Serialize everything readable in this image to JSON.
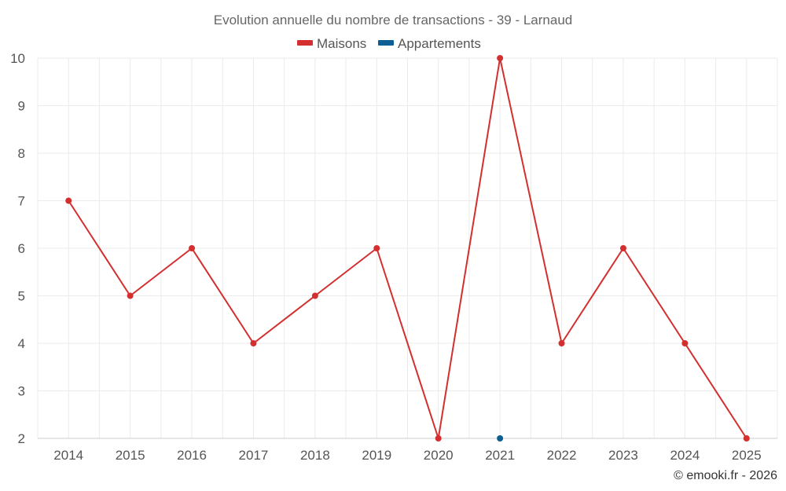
{
  "chart_data": {
    "type": "line",
    "title": "Evolution annuelle du nombre de transactions - 39 - Larnaud",
    "categories": [
      "2014",
      "2015",
      "2016",
      "2017",
      "2018",
      "2019",
      "2020",
      "2021",
      "2022",
      "2023",
      "2024",
      "2025"
    ],
    "ylim": [
      2,
      10
    ],
    "yticks": [
      2,
      3,
      4,
      5,
      6,
      7,
      8,
      9,
      10
    ],
    "grid": true,
    "legend_position": "top-center",
    "series": [
      {
        "name": "Maisons",
        "color": "#d32f2f",
        "values": [
          7,
          5,
          6,
          4,
          5,
          6,
          2,
          10,
          4,
          6,
          4,
          2
        ]
      },
      {
        "name": "Appartements",
        "color": "#0d5e94",
        "values": [
          null,
          null,
          null,
          null,
          null,
          null,
          null,
          2,
          null,
          null,
          null,
          null
        ]
      }
    ],
    "credit": "© emooki.fr - 2026"
  }
}
